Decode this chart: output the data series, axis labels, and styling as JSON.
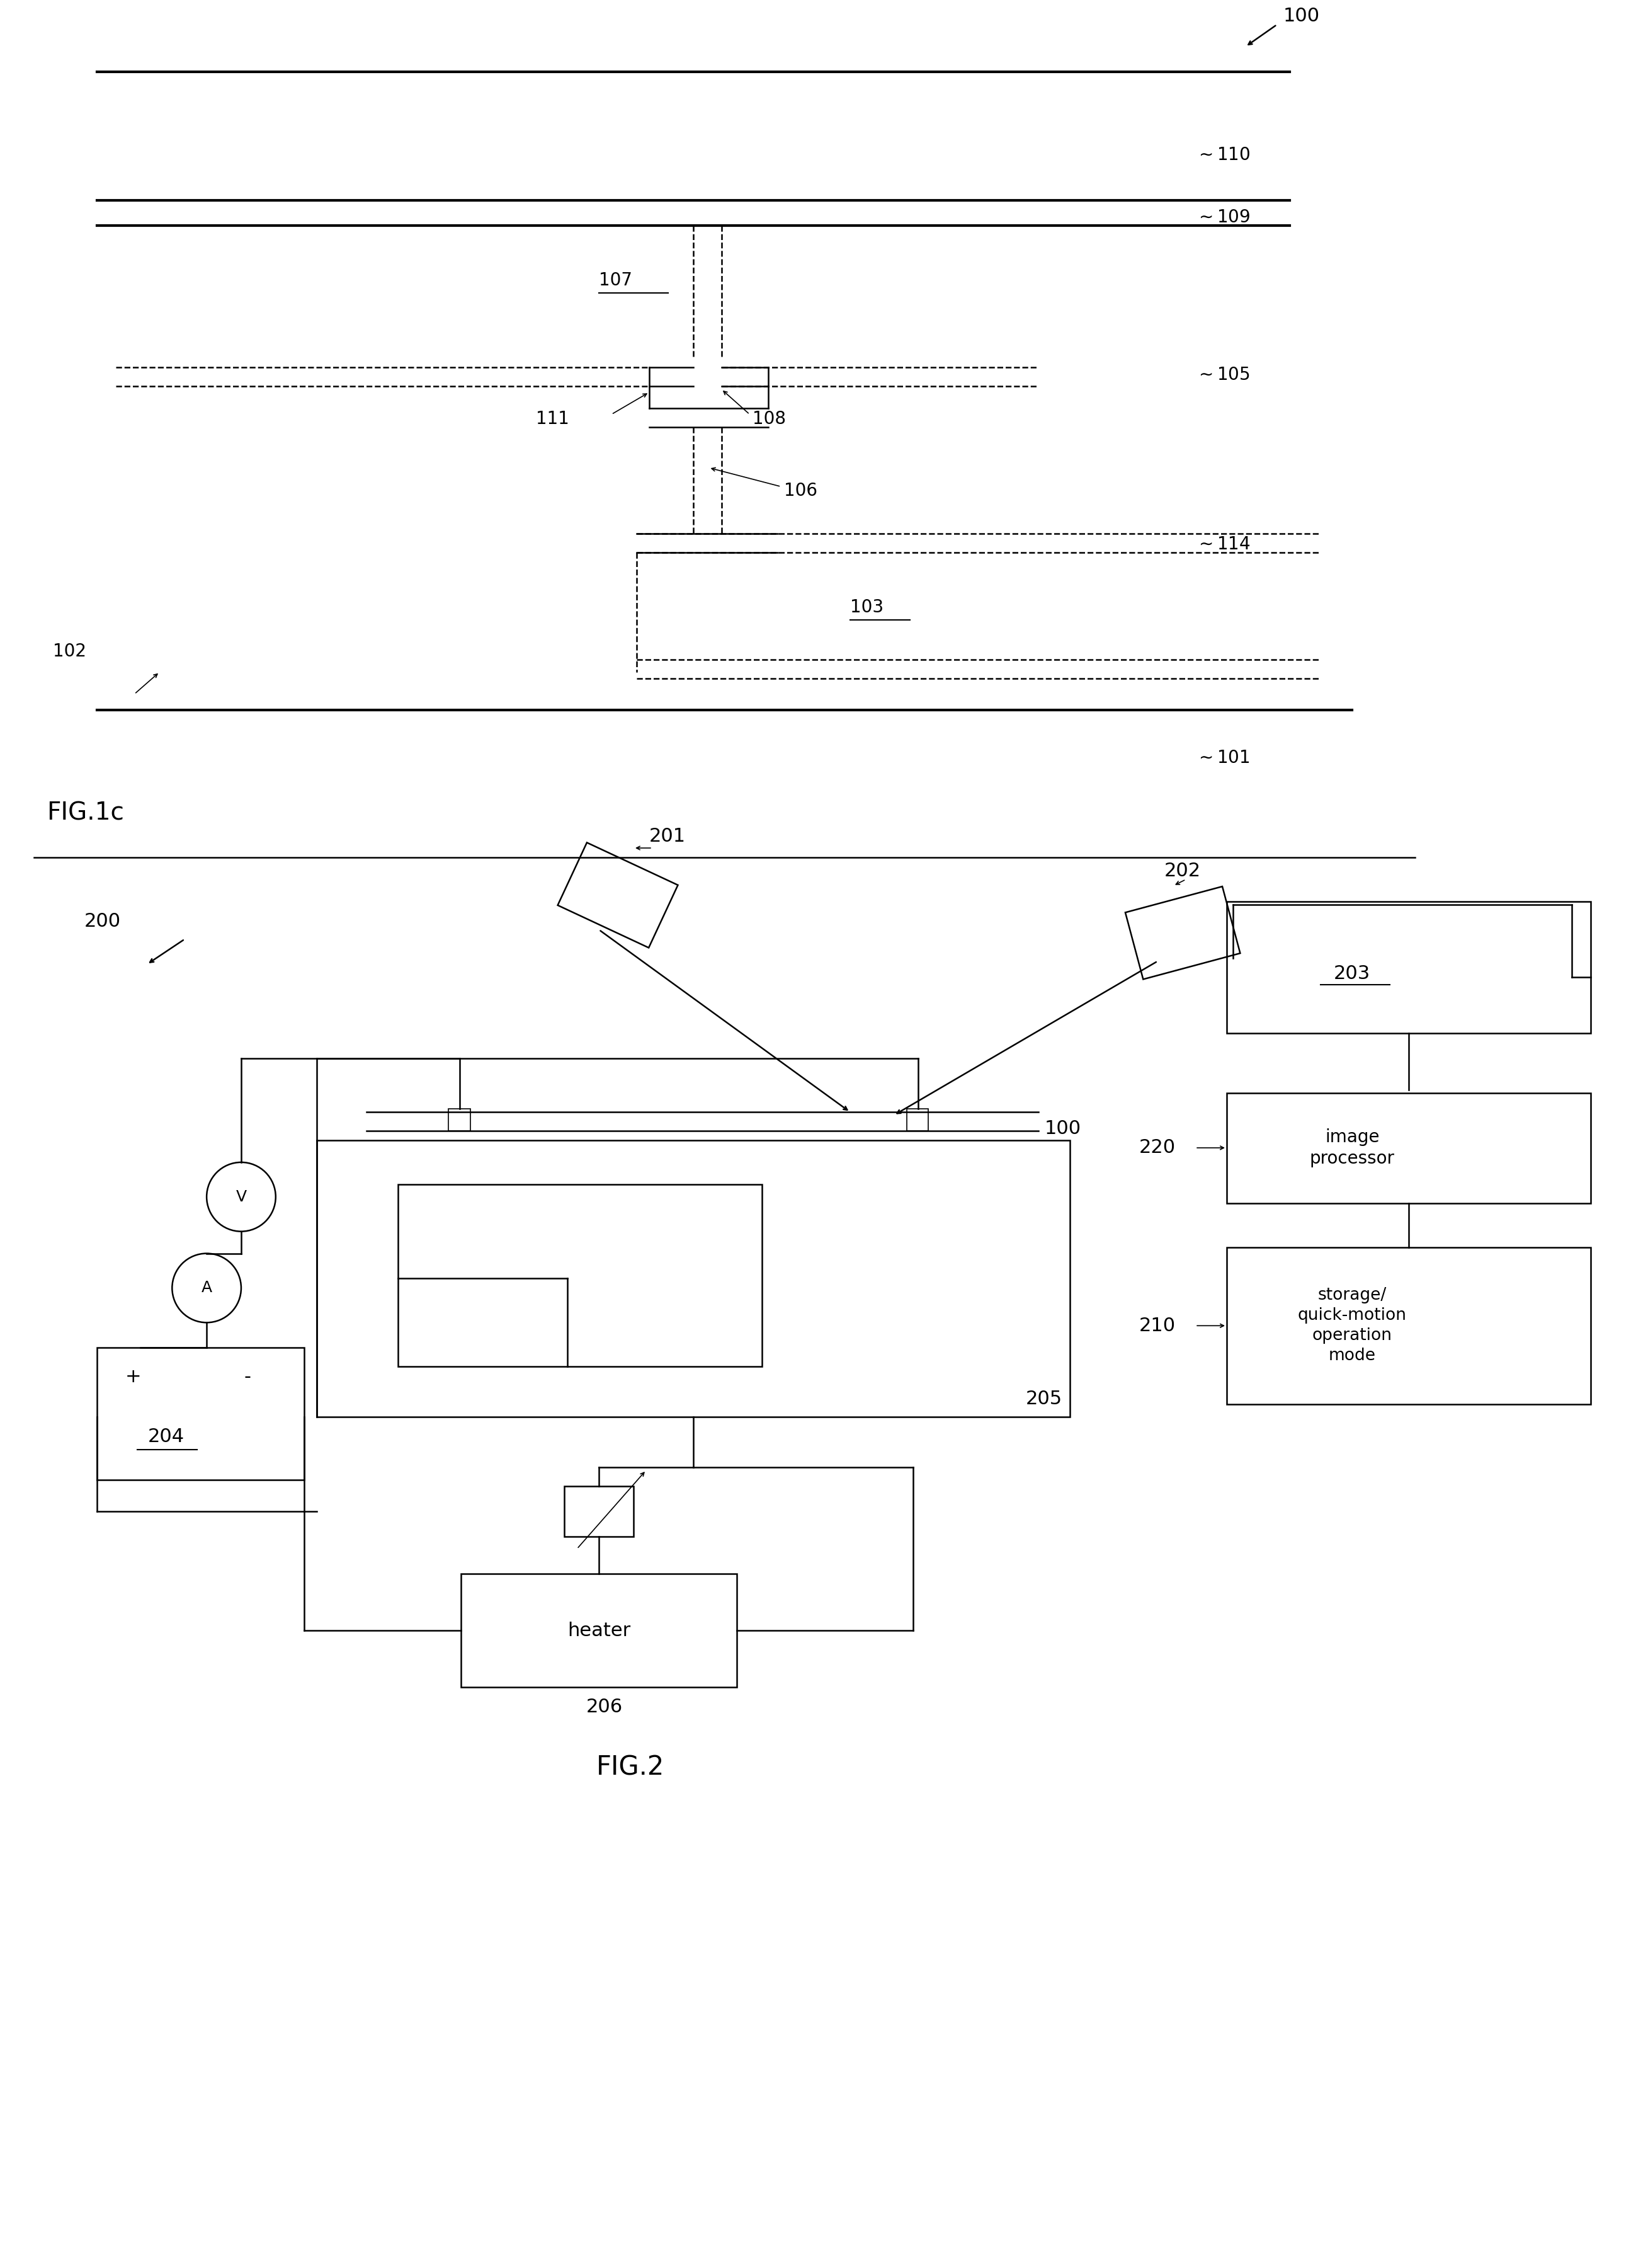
{
  "fig_width": 26.17,
  "fig_height": 36.0,
  "bg_color": "#ffffff",
  "line_color": "#000000",
  "fig1c": {
    "title": "FIG.1c",
    "ref100": "100",
    "ref101": "101",
    "ref102": "102",
    "ref103": "103",
    "ref105": "105",
    "ref106": "106",
    "ref107": "107",
    "ref108": "108",
    "ref109": "109",
    "ref110": "110",
    "ref111": "111",
    "ref114": "114"
  },
  "fig2": {
    "title": "FIG.2",
    "ref100": "100",
    "ref200": "200",
    "ref201": "201",
    "ref202": "202",
    "ref203": "203",
    "ref204": "204",
    "ref205": "205",
    "ref206": "206",
    "ref210": "210",
    "ref220": "220",
    "label_image_processor": "image\nprocessor",
    "label_storage": "storage/\nquick-motion\noperation\nmode",
    "label_heater": "heater",
    "label_plus": "+",
    "label_minus": "-",
    "label_V": "V",
    "label_A": "A"
  }
}
